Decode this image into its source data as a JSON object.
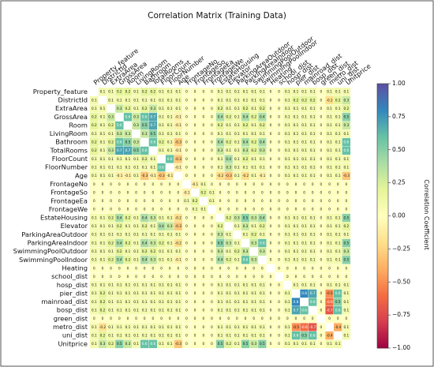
{
  "chart_data": {
    "type": "heatmap",
    "title": "Correlation Matrix (Training Data)",
    "categories": [
      "Property_feature",
      "DistrictId",
      "ExtraArea",
      "GrossArea",
      "Room",
      "LivingRoom",
      "Bathroom",
      "TotalRooms",
      "FloorCount",
      "FloorNumber",
      "Age",
      "FrontageNo",
      "FrontageSo",
      "FrontageEa",
      "FrontageWe",
      "EstateHousing",
      "Elevator",
      "ParkingAreaOutdoor",
      "ParkingAreaIndoor",
      "SwimmingPoolOutdoor",
      "SwimmingPoolIndoor",
      "Heating",
      "school_dist",
      "hosp_dist",
      "pier_dist",
      "mainroad_dist",
      "bosp_dist",
      "green_dist",
      "metro_dist",
      "uni_dist",
      "Unitprice"
    ],
    "values": [
      [
        null,
        0.1,
        0.1,
        0.2,
        0.2,
        0.1,
        0.2,
        0.2,
        0.1,
        0.1,
        0.1,
        0,
        0,
        0,
        0,
        0.1,
        0.1,
        0.1,
        0.1,
        0.1,
        0.1,
        0,
        0,
        0.1,
        0.1,
        0.1,
        0.1,
        0,
        0.1,
        0.1,
        0.1
      ],
      [
        0.1,
        null,
        0.1,
        0.1,
        0.1,
        0.1,
        0.1,
        0.1,
        0.1,
        0.1,
        0.1,
        0,
        0,
        0,
        0,
        0.1,
        0.1,
        0.1,
        0.1,
        0.1,
        0.1,
        0,
        0,
        0.1,
        0.2,
        0.2,
        0.2,
        0,
        -0.2,
        0.2,
        0.3
      ],
      [
        0.1,
        0.1,
        null,
        0.3,
        0.2,
        0.1,
        0.2,
        0.3,
        0.1,
        0.1,
        0.1,
        0,
        0,
        0,
        0,
        0.2,
        0.1,
        0.1,
        0.2,
        0.1,
        0.2,
        0,
        0,
        0.1,
        0.1,
        0.1,
        0.1,
        0,
        0.1,
        0.1,
        0.2
      ],
      [
        0.2,
        0.1,
        0.3,
        null,
        0.6,
        0.3,
        0.6,
        0.7,
        0.1,
        0.1,
        -0.1,
        0,
        0,
        0,
        0,
        0.4,
        0.2,
        0.1,
        0.4,
        0.2,
        0.4,
        0,
        0,
        0.1,
        0.1,
        0.1,
        0.1,
        0,
        0.1,
        0.1,
        0.5
      ],
      [
        0.2,
        0.1,
        0.2,
        0.6,
        null,
        0.3,
        0.5,
        0.7,
        0.1,
        0.1,
        -0.1,
        0,
        0,
        0,
        0,
        0.2,
        0.1,
        0.1,
        0.2,
        0.1,
        0.2,
        0,
        0,
        0.1,
        0.1,
        0.1,
        0.1,
        0,
        0.1,
        0.1,
        0.3
      ],
      [
        0.1,
        0.1,
        0.1,
        0.3,
        0.3,
        null,
        0.3,
        0.5,
        0.1,
        0.1,
        0.1,
        0,
        0,
        0,
        0,
        0.1,
        0.1,
        0.1,
        0.1,
        0.1,
        0.1,
        0,
        0,
        0.1,
        0.1,
        0.1,
        0.1,
        0,
        0.1,
        0.1,
        0.1
      ],
      [
        0.2,
        0.1,
        0.2,
        0.6,
        0.5,
        0.3,
        null,
        0.6,
        0.2,
        0.1,
        -0.3,
        0,
        0,
        0,
        0,
        0.4,
        0.2,
        0.1,
        0.4,
        0.2,
        0.4,
        0,
        0,
        0.1,
        0.1,
        0.1,
        0.1,
        0,
        0.1,
        0.1,
        0.6
      ],
      [
        0.2,
        0.1,
        0.3,
        0.7,
        0.7,
        0.5,
        0.6,
        null,
        0.1,
        0.1,
        -0.1,
        0,
        0,
        0,
        0,
        0.3,
        0.1,
        0.1,
        0.3,
        0.2,
        0.3,
        0,
        0,
        0.1,
        0.1,
        0.1,
        0.1,
        0,
        0.1,
        0.1,
        0.6
      ],
      [
        0.1,
        0.1,
        0.1,
        0.1,
        0.1,
        0.1,
        0.2,
        0.1,
        null,
        0.6,
        -0.3,
        0,
        0,
        0,
        0,
        0.1,
        0.4,
        0.1,
        0.2,
        0.1,
        0.1,
        0,
        0,
        0.1,
        0.1,
        0.1,
        0.1,
        0,
        0.1,
        0.1,
        0.1
      ],
      [
        0.1,
        0.1,
        0.1,
        0.1,
        0.1,
        0.1,
        0.1,
        0.1,
        0.6,
        null,
        -0.1,
        0,
        0,
        0,
        0,
        0.1,
        0.3,
        0.1,
        0.1,
        0.1,
        0.1,
        0,
        0,
        0.1,
        0.1,
        0.1,
        0.1,
        0,
        0.1,
        0.1,
        0.1
      ],
      [
        0.1,
        0.1,
        0.1,
        -0.1,
        -0.1,
        0.1,
        -0.3,
        -0.1,
        -0.3,
        -0.1,
        null,
        0,
        0,
        0,
        0,
        -0.2,
        -0.3,
        0.1,
        -0.2,
        0.1,
        -0.1,
        0,
        0,
        0.1,
        0.1,
        0.1,
        0.1,
        0,
        0.1,
        0.1,
        -0.3
      ],
      [
        0,
        0,
        0,
        0,
        0,
        0,
        0,
        0,
        0,
        0,
        0,
        null,
        -0.1,
        0.1,
        0,
        0,
        0,
        0,
        0,
        0,
        0,
        0,
        0,
        0,
        0,
        0,
        0,
        0,
        0,
        0,
        0
      ],
      [
        0,
        0,
        0,
        0,
        0,
        0,
        0,
        0,
        0,
        0,
        0,
        -0.1,
        null,
        0.2,
        0.1,
        0,
        0,
        0,
        0,
        0,
        0,
        0,
        0,
        0,
        0,
        0,
        0,
        0,
        0,
        0,
        0
      ],
      [
        0,
        0,
        0,
        0,
        0,
        0,
        0,
        0,
        0,
        0,
        0,
        0.1,
        0.2,
        null,
        0.1,
        0,
        0,
        0,
        0,
        0,
        0,
        0,
        0,
        0,
        0,
        0,
        0,
        0,
        0,
        0,
        0
      ],
      [
        0,
        0,
        0,
        0,
        0,
        0,
        0,
        0,
        0,
        0,
        0,
        0,
        0.1,
        0.1,
        null,
        0,
        0,
        0,
        0,
        0,
        0,
        0,
        0,
        0,
        0,
        0,
        0,
        0,
        0,
        0,
        0
      ],
      [
        0.1,
        0.1,
        0.2,
        0.4,
        0.2,
        0.1,
        0.4,
        0.3,
        0.1,
        0.1,
        -0.2,
        0,
        0,
        0,
        0,
        null,
        0.2,
        0.3,
        0.5,
        0.3,
        0.4,
        0,
        0,
        0.1,
        0.1,
        0.1,
        0.1,
        0,
        0.1,
        0.1,
        0.5
      ],
      [
        0.1,
        0.1,
        0.1,
        0.2,
        0.1,
        0.1,
        0.2,
        0.1,
        0.4,
        0.3,
        -0.3,
        0,
        0,
        0,
        0,
        0.2,
        null,
        0.1,
        0.3,
        0.1,
        0.2,
        0,
        0,
        0.1,
        0.1,
        0.1,
        0.1,
        0,
        0.1,
        0.1,
        0.2
      ],
      [
        0.1,
        0.1,
        0.1,
        0.1,
        0.1,
        0.1,
        0.1,
        0.1,
        0.1,
        0.1,
        0.1,
        0,
        0,
        0,
        0,
        0.3,
        0.1,
        null,
        0.1,
        0.2,
        0.1,
        0,
        0,
        0.1,
        0.1,
        0.1,
        0.1,
        0,
        0.1,
        0.1,
        0.1
      ],
      [
        0.1,
        0.1,
        0.2,
        0.4,
        0.2,
        0.1,
        0.4,
        0.3,
        0.2,
        0.1,
        -0.2,
        0,
        0,
        0,
        0,
        0.5,
        0.3,
        0.1,
        null,
        0.3,
        0.6,
        0,
        0,
        0.1,
        0.1,
        0.1,
        0.1,
        0,
        0.1,
        0.1,
        0.5
      ],
      [
        0.1,
        0.1,
        0.1,
        0.2,
        0.1,
        0.1,
        0.2,
        0.2,
        0.1,
        0.1,
        0.1,
        0,
        0,
        0,
        0,
        0.3,
        0.1,
        0.2,
        0.3,
        null,
        0.3,
        0,
        0,
        0.1,
        0.1,
        0.1,
        0.1,
        0,
        0.1,
        0.1,
        0.3
      ],
      [
        0.1,
        0.1,
        0.2,
        0.4,
        0.2,
        0.1,
        0.4,
        0.3,
        0.1,
        0.1,
        -0.1,
        0,
        0,
        0,
        0,
        0.4,
        0.2,
        0.1,
        0.6,
        0.3,
        null,
        0,
        0,
        0.1,
        0.1,
        0.1,
        0.1,
        0,
        0.1,
        0.1,
        0.5
      ],
      [
        0,
        0,
        0,
        0,
        0,
        0,
        0,
        0,
        0,
        0,
        0,
        0,
        0,
        0,
        0,
        0,
        0,
        0,
        0,
        0,
        0,
        null,
        0,
        0,
        0,
        0,
        0,
        0,
        0,
        0,
        0
      ],
      [
        0,
        0,
        0,
        0,
        0,
        0,
        0,
        0,
        0,
        0,
        0,
        0,
        0,
        0,
        0,
        0,
        0,
        0,
        0,
        0,
        0,
        0,
        null,
        0,
        0,
        0,
        0,
        0,
        0,
        0,
        0
      ],
      [
        0.1,
        0.1,
        0.1,
        0.1,
        0.1,
        0.1,
        0.1,
        0.1,
        0.1,
        0.1,
        0.1,
        0,
        0,
        0,
        0,
        0.1,
        0.1,
        0.1,
        0.1,
        0.1,
        0.1,
        0,
        0,
        null,
        0.1,
        0.1,
        0.1,
        0,
        0.1,
        0.1,
        0.1
      ],
      [
        0.1,
        0.2,
        0.1,
        0.1,
        0.1,
        0.1,
        0.1,
        0.1,
        0.1,
        0.1,
        0.1,
        0,
        0,
        0,
        0,
        0.1,
        0.1,
        0.1,
        0.1,
        0.1,
        0.1,
        0,
        0,
        0.1,
        null,
        0.8,
        0.7,
        0,
        -0.5,
        0.6,
        0.1
      ],
      [
        0.1,
        0.2,
        0.1,
        0.1,
        0.1,
        0.1,
        0.1,
        0.1,
        0.1,
        0.1,
        0.1,
        0,
        0,
        0,
        0,
        0.1,
        0.1,
        0.1,
        0.1,
        0.1,
        0.1,
        0,
        0,
        0.1,
        0.8,
        null,
        0.6,
        0,
        -0.6,
        0.5,
        0.1
      ],
      [
        0.1,
        0.2,
        0.1,
        0.1,
        0.1,
        0.1,
        0.1,
        0.1,
        0.1,
        0.1,
        0.1,
        0,
        0,
        0,
        0,
        0.1,
        0.1,
        0.1,
        0.1,
        0.1,
        0.1,
        0,
        0,
        0.1,
        0.7,
        0.6,
        null,
        0,
        -0.7,
        0.6,
        0.1
      ],
      [
        0,
        0,
        0,
        0,
        0,
        0,
        0,
        0,
        0,
        0,
        0,
        0,
        0,
        0,
        0,
        0,
        0,
        0,
        0,
        0,
        0,
        0,
        0,
        0,
        0,
        0,
        0,
        null,
        0,
        0,
        0
      ],
      [
        0.1,
        -0.2,
        0.1,
        0.1,
        0.1,
        0.1,
        0.1,
        0.1,
        0.1,
        0.1,
        0.1,
        0,
        0,
        0,
        0,
        0.1,
        0.1,
        0.1,
        0.1,
        0.1,
        0.1,
        0,
        0,
        0.1,
        -0.5,
        -0.6,
        -0.7,
        0,
        null,
        -0.4,
        0.1
      ],
      [
        0.1,
        0.2,
        0.1,
        0.1,
        0.1,
        0.1,
        0.1,
        0.1,
        0.1,
        0.1,
        0.1,
        0,
        0,
        0,
        0,
        0.1,
        0.1,
        0.1,
        0.1,
        0.1,
        0.1,
        0,
        0,
        0.1,
        0.6,
        0.5,
        0.6,
        0,
        -0.4,
        null,
        0.1
      ],
      [
        0.1,
        0.3,
        0.2,
        0.5,
        0.3,
        0.1,
        0.6,
        0.6,
        0.1,
        0.1,
        -0.3,
        0,
        0,
        0,
        0,
        0.5,
        0.2,
        0.1,
        0.5,
        0.3,
        0.5,
        0,
        0,
        0.1,
        0.1,
        0.1,
        0.1,
        0,
        0.1,
        0.1,
        null
      ]
    ],
    "colormap": "Spectral",
    "colorbar_label": "Correlation Coefficient",
    "clim": [
      -1,
      1
    ],
    "cticks": [
      {
        "value": -1,
        "label": "−1.00"
      },
      {
        "value": -0.75,
        "label": "−0.75"
      },
      {
        "value": -0.5,
        "label": "−0.50"
      },
      {
        "value": -0.25,
        "label": "−0.25"
      },
      {
        "value": 0,
        "label": "0.00"
      },
      {
        "value": 0.25,
        "label": "0.25"
      },
      {
        "value": 0.5,
        "label": "0.50"
      },
      {
        "value": 0.75,
        "label": "0.75"
      },
      {
        "value": 1,
        "label": "1.00"
      }
    ]
  }
}
